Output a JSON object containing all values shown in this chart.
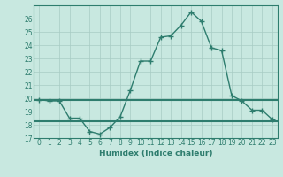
{
  "xlabel": "Humidex (Indice chaleur)",
  "x": [
    0,
    1,
    2,
    3,
    4,
    5,
    6,
    7,
    8,
    9,
    10,
    11,
    12,
    13,
    14,
    15,
    16,
    17,
    18,
    19,
    20,
    21,
    22,
    23
  ],
  "y_main": [
    19.9,
    19.8,
    19.8,
    18.5,
    18.5,
    17.5,
    17.3,
    17.8,
    18.6,
    20.6,
    22.8,
    22.8,
    24.6,
    24.7,
    25.5,
    26.5,
    25.8,
    23.8,
    23.6,
    20.2,
    19.8,
    19.1,
    19.1,
    18.4
  ],
  "y_avg": 19.9,
  "y_min": 18.3,
  "line_color": "#2e7d6e",
  "bg_color": "#c8e8e0",
  "grid_color": "#a8ccc4",
  "ylim": [
    17,
    27
  ],
  "xlim_min": -0.5,
  "xlim_max": 23.5,
  "yticks": [
    17,
    18,
    19,
    20,
    21,
    22,
    23,
    24,
    25,
    26
  ],
  "xtick_labels": [
    "0",
    "1",
    "2",
    "3",
    "4",
    "5",
    "6",
    "7",
    "8",
    "9",
    "10",
    "11",
    "12",
    "13",
    "14",
    "15",
    "16",
    "17",
    "18",
    "19",
    "20",
    "21",
    "22",
    "23"
  ],
  "marker": "+",
  "marker_size": 4,
  "linewidth_main": 1.0,
  "linewidth_horiz": 1.5,
  "tick_fontsize": 5.5,
  "xlabel_fontsize": 6.5
}
